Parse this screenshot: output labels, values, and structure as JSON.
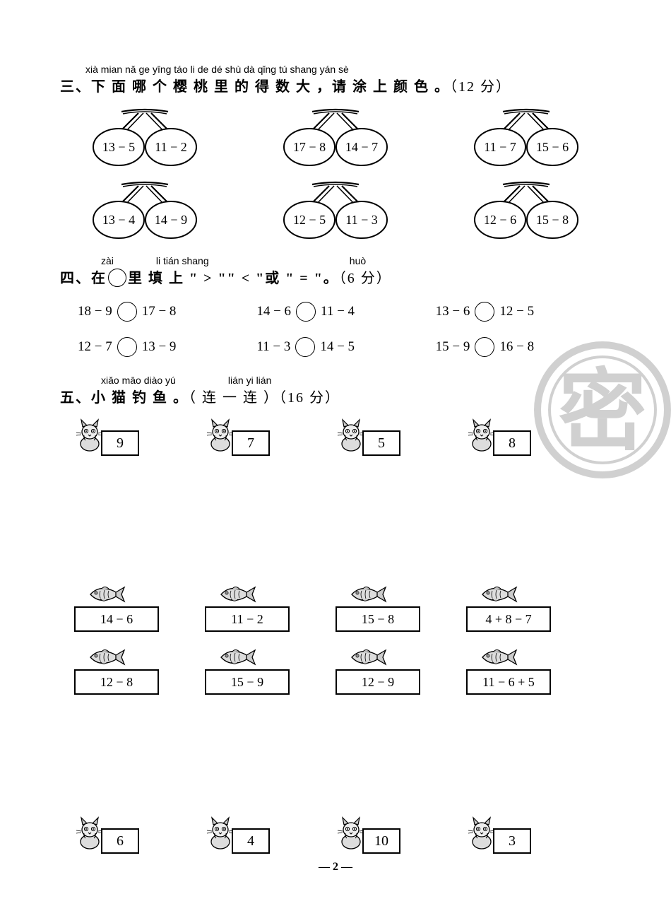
{
  "colors": {
    "text": "#000000",
    "bg": "#ffffff",
    "stroke": "#000000",
    "gray": "#888888"
  },
  "section3": {
    "pinyin": "xià mian nǎ ge yīng táo li de dé shù dà   qǐng tú shang yán sè",
    "label": "三、",
    "text": "下 面 哪 个 樱 桃 里 的 得 数 大 ，请 涂  上  颜 色 。",
    "points": "（12 分）",
    "pairs": [
      {
        "l": "13 − 5",
        "r": "11 − 2"
      },
      {
        "l": "17 − 8",
        "r": "14 − 7"
      },
      {
        "l": "11 − 7",
        "r": "15 − 6"
      },
      {
        "l": "13 − 4",
        "r": "14 − 9"
      },
      {
        "l": "12 − 5",
        "r": "11 − 3"
      },
      {
        "l": "12 − 6",
        "r": "15 − 8"
      }
    ]
  },
  "section4": {
    "pinyin_pre": "zài",
    "pinyin_mid": "li tián shang",
    "pinyin_end": "huò",
    "label": "四、",
    "pre": "在",
    "mid": "里 填  上 \" > \"\" < \"或 \" = \"。",
    "points": "（6 分）",
    "items": [
      {
        "l": "18 − 9",
        "r": "17 − 8"
      },
      {
        "l": "14 − 6",
        "r": "11 − 4"
      },
      {
        "l": "13 − 6",
        "r": "12 − 5"
      },
      {
        "l": "12 − 7",
        "r": "13 − 9"
      },
      {
        "l": "11 − 3",
        "r": "14 − 5"
      },
      {
        "l": "15 − 9",
        "r": "16 − 8"
      }
    ]
  },
  "section5": {
    "pinyin1": "xiǎo māo diào yú",
    "pinyin2": "lián yi lián",
    "label": "五、",
    "text": "小 猫 钓 鱼 。",
    "paren": "（ 连 一 连 ）",
    "points": "（16 分）",
    "catsTop": [
      "9",
      "7",
      "5",
      "8"
    ],
    "fishRow1": [
      "14 − 6",
      "11 − 2",
      "15 − 8",
      "4 + 8 − 7"
    ],
    "fishRow2": [
      "12 − 8",
      "15 − 9",
      "12 − 9",
      "11 − 6 + 5"
    ],
    "catsBottom": [
      "6",
      "4",
      "10",
      "3"
    ]
  },
  "watermark": "密",
  "pageNumber": "2"
}
